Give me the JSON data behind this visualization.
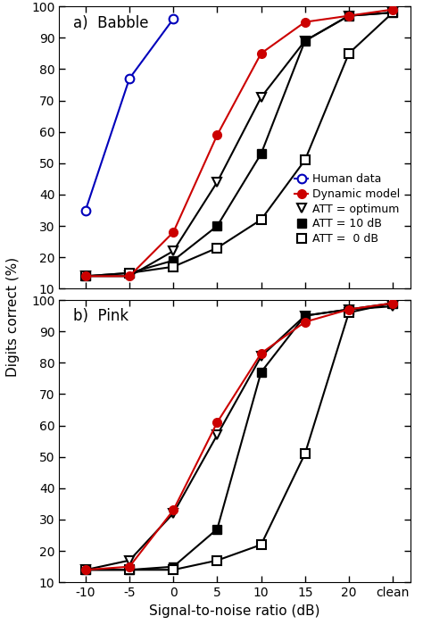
{
  "x_snr": [
    -10,
    -5,
    0,
    5,
    10,
    15,
    20,
    25
  ],
  "x_labels": [
    "-10",
    "-5",
    "0",
    "5",
    "10",
    "15",
    "20",
    "clean"
  ],
  "x_positions": [
    -10,
    -5,
    0,
    5,
    10,
    15,
    20,
    25
  ],
  "babble": {
    "human": {
      "x": [
        -10,
        -5,
        0
      ],
      "y": [
        35,
        77,
        96
      ]
    },
    "dynamic": {
      "x": [
        -10,
        -5,
        0,
        5,
        10,
        15,
        20,
        25
      ],
      "y": [
        14,
        14,
        28,
        59,
        85,
        95,
        97,
        99
      ]
    },
    "att_opt": {
      "x": [
        -10,
        -5,
        0,
        5,
        10,
        15,
        20,
        25
      ],
      "y": [
        14,
        14,
        22,
        44,
        71,
        89,
        97,
        98
      ]
    },
    "att_10": {
      "x": [
        -10,
        -5,
        0,
        5,
        10,
        15,
        20,
        25
      ],
      "y": [
        14,
        15,
        19,
        30,
        53,
        89,
        97,
        98
      ]
    },
    "att_0": {
      "x": [
        -10,
        -5,
        0,
        5,
        10,
        15,
        20,
        25
      ],
      "y": [
        14,
        15,
        17,
        23,
        32,
        51,
        85,
        98
      ]
    }
  },
  "pink": {
    "dynamic": {
      "x": [
        -10,
        -5,
        0,
        5,
        10,
        15,
        20,
        25
      ],
      "y": [
        14,
        15,
        33,
        61,
        83,
        93,
        97,
        99
      ]
    },
    "att_opt": {
      "x": [
        -10,
        -5,
        0,
        5,
        10,
        15,
        20,
        25
      ],
      "y": [
        14,
        17,
        32,
        57,
        82,
        95,
        97,
        98
      ]
    },
    "att_10": {
      "x": [
        -10,
        -5,
        0,
        5,
        10,
        15,
        20,
        25
      ],
      "y": [
        14,
        14,
        15,
        27,
        77,
        95,
        97,
        99
      ]
    },
    "att_0": {
      "x": [
        -10,
        -5,
        0,
        5,
        10,
        15,
        20,
        25
      ],
      "y": [
        14,
        14,
        14,
        17,
        22,
        51,
        96,
        99
      ]
    }
  },
  "colors": {
    "human": "#0000bb",
    "dynamic": "#cc0000",
    "black": "#000000"
  },
  "ylim": [
    10,
    100
  ],
  "yticks": [
    10,
    20,
    30,
    40,
    50,
    60,
    70,
    80,
    90,
    100
  ],
  "ylabel": "Digits correct (%)",
  "xlabel": "Signal-to-noise ratio (dB)",
  "title_a": "a)  Babble",
  "title_b": "b)  Pink",
  "markersize": 7,
  "linewidth": 1.5
}
